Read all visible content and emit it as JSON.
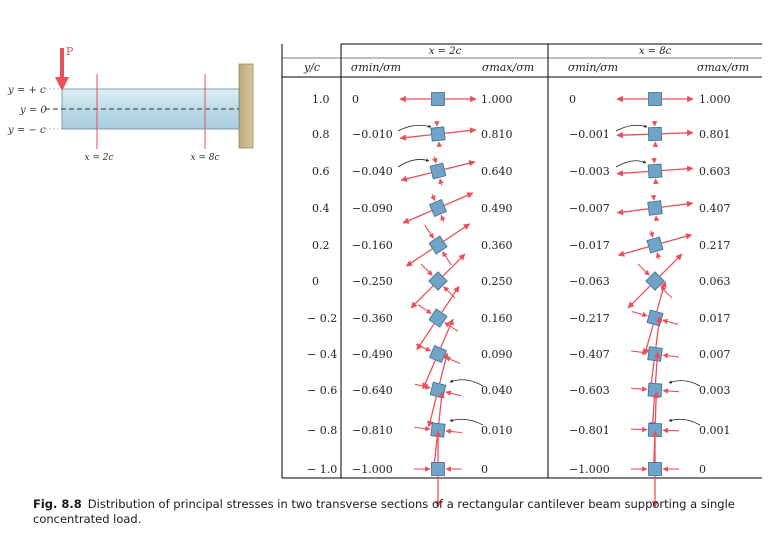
{
  "beam": {
    "load_label": "P",
    "y_labels": [
      "y = + c",
      "y = 0",
      "y = − c"
    ],
    "section_labels": [
      "x = 2c",
      "x = 8c"
    ]
  },
  "table": {
    "col_yc": "y/c",
    "group_headers": [
      "x = 2c",
      "x = 8c"
    ],
    "sub_headers": [
      "σmin/σm",
      "σmax/σm",
      "σmin/σm",
      "σmax/σm"
    ],
    "rows": [
      {
        "yc": "1.0",
        "min2": "0",
        "max2": "1.000",
        "min8": "0",
        "max8": "1.000"
      },
      {
        "yc": "0.8",
        "min2": "−0.010",
        "max2": "0.810",
        "min8": "−0.001",
        "max8": "0.801"
      },
      {
        "yc": "0.6",
        "min2": "−0.040",
        "max2": "0.640",
        "min8": "−0.003",
        "max8": "0.603"
      },
      {
        "yc": "0.4",
        "min2": "−0.090",
        "max2": "0.490",
        "min8": "−0.007",
        "max8": "0.407"
      },
      {
        "yc": "0.2",
        "min2": "−0.160",
        "max2": "0.360",
        "min8": "−0.017",
        "max8": "0.217"
      },
      {
        "yc": "0",
        "min2": "−0.250",
        "max2": "0.250",
        "min8": "−0.063",
        "max8": "0.063"
      },
      {
        "yc": "− 0.2",
        "min2": "−0.360",
        "max2": "0.160",
        "min8": "−0.217",
        "max8": "0.017"
      },
      {
        "yc": "− 0.4",
        "min2": "−0.490",
        "max2": "0.090",
        "min8": "−0.407",
        "max8": "0.007"
      },
      {
        "yc": "− 0.6",
        "min2": "−0.640",
        "max2": "0.040",
        "min8": "−0.603",
        "max8": "0.003"
      },
      {
        "yc": "− 0.8",
        "min2": "−0.810",
        "max2": "0.010",
        "min8": "−0.801",
        "max8": "0.001"
      },
      {
        "yc": "− 1.0",
        "min2": "−1.000",
        "max2": "0",
        "min8": "−1.000",
        "max8": "0"
      }
    ]
  },
  "stress_angles_deg": {
    "x2c": [
      0,
      6.3,
      14.0,
      23.2,
      33.7,
      45,
      56.3,
      66.8,
      76.0,
      83.7,
      90
    ],
    "x8c": [
      0,
      2.0,
      4.0,
      7.3,
      15.6,
      45,
      74.4,
      82.7,
      86.0,
      88.0,
      90
    ]
  },
  "colors": {
    "arrow": "#e8505b",
    "element": "#6fa3c7",
    "beam": "#c9e3ee",
    "wall": "#c8b48a",
    "grid": "#000000"
  },
  "caption": {
    "figure": "Fig. 8.8",
    "text": "Distribution of principal stresses in two transverse sections of a rectangular cantilever beam supporting a single concentrated load."
  }
}
